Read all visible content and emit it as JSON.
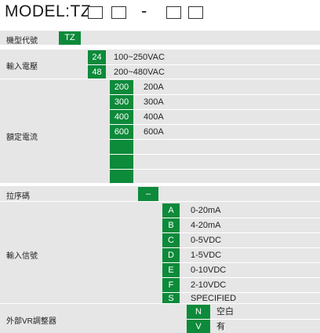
{
  "model": {
    "title": "MODEL:TZ",
    "separator": "-"
  },
  "rows": {
    "model_code": {
      "label": "機型代號",
      "code": "TZ"
    },
    "input_voltage": {
      "label": "輸入電壓",
      "options": [
        {
          "code": "24",
          "desc": "100~250VAC"
        },
        {
          "code": "48",
          "desc": "200~480VAC"
        }
      ]
    },
    "rated_current": {
      "label": "額定電流",
      "options": [
        {
          "code": "200",
          "desc": "200A"
        },
        {
          "code": "300",
          "desc": "300A"
        },
        {
          "code": "400",
          "desc": "400A"
        },
        {
          "code": "600",
          "desc": "600A"
        },
        {
          "code": "",
          "desc": ""
        },
        {
          "code": "",
          "desc": ""
        },
        {
          "code": "",
          "desc": ""
        },
        {
          "code": "",
          "desc": ""
        }
      ]
    },
    "dash_code": {
      "label": "拉序碼",
      "code": "–"
    },
    "input_signal": {
      "label": "輸入信號",
      "options": [
        {
          "code": "A",
          "desc": "0-20mA"
        },
        {
          "code": "B",
          "desc": "4-20mA"
        },
        {
          "code": "C",
          "desc": "0-5VDC"
        },
        {
          "code": "D",
          "desc": "1-5VDC"
        },
        {
          "code": "E",
          "desc": "0-10VDC"
        },
        {
          "code": "F",
          "desc": "2-10VDC"
        },
        {
          "code": "S",
          "desc": "SPECIFIED"
        }
      ]
    },
    "external_vr": {
      "label": "外部VR調整器",
      "options": [
        {
          "code": "N",
          "desc": "空白"
        },
        {
          "code": "V",
          "desc": "有"
        }
      ]
    }
  },
  "colors": {
    "accent": "#0d8a3a",
    "row_background": "#e6e6e6"
  }
}
